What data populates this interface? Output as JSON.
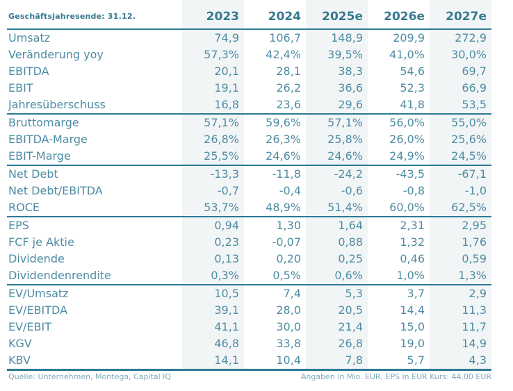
{
  "page": {
    "fiscal_year_end_label": "Geschäftsjahresende: 31.12."
  },
  "table": {
    "columns": [
      "2023",
      "2024",
      "2025e",
      "2026e",
      "2027e"
    ],
    "shaded_columns": [
      0,
      2,
      4
    ],
    "groups": [
      {
        "rows": [
          {
            "label": "Umsatz",
            "values": [
              "74,9",
              "106,7",
              "148,9",
              "209,9",
              "272,9"
            ]
          },
          {
            "label": "Veränderung yoy",
            "values": [
              "57,3%",
              "42,4%",
              "39,5%",
              "41,0%",
              "30,0%"
            ]
          },
          {
            "label": "EBITDA",
            "values": [
              "20,1",
              "28,1",
              "38,3",
              "54,6",
              "69,7"
            ]
          },
          {
            "label": "EBIT",
            "values": [
              "19,1",
              "26,2",
              "36,6",
              "52,3",
              "66,9"
            ]
          },
          {
            "label": "Jahresüberschuss",
            "values": [
              "16,8",
              "23,6",
              "29,6",
              "41,8",
              "53,5"
            ]
          }
        ]
      },
      {
        "rows": [
          {
            "label": "Bruttomarge",
            "values": [
              "57,1%",
              "59,6%",
              "57,1%",
              "56,0%",
              "55,0%"
            ]
          },
          {
            "label": "EBITDA-Marge",
            "values": [
              "26,8%",
              "26,3%",
              "25,8%",
              "26,0%",
              "25,6%"
            ]
          },
          {
            "label": "EBIT-Marge",
            "values": [
              "25,5%",
              "24,6%",
              "24,6%",
              "24,9%",
              "24,5%"
            ]
          }
        ]
      },
      {
        "rows": [
          {
            "label": "Net Debt",
            "values": [
              "-13,3",
              "-11,8",
              "-24,2",
              "-43,5",
              "-67,1"
            ]
          },
          {
            "label": "Net Debt/EBITDA",
            "values": [
              "-0,7",
              "-0,4",
              "-0,6",
              "-0,8",
              "-1,0"
            ]
          },
          {
            "label": "ROCE",
            "values": [
              "53,7%",
              "48,9%",
              "51,4%",
              "60,0%",
              "62,5%"
            ]
          }
        ]
      },
      {
        "rows": [
          {
            "label": "EPS",
            "values": [
              "0,94",
              "1,30",
              "1,64",
              "2,31",
              "2,95"
            ]
          },
          {
            "label": "FCF je Aktie",
            "values": [
              "0,23",
              "-0,07",
              "0,88",
              "1,32",
              "1,76"
            ]
          },
          {
            "label": "Dividende",
            "values": [
              "0,13",
              "0,20",
              "0,25",
              "0,46",
              "0,59"
            ]
          },
          {
            "label": "Dividendenrendite",
            "values": [
              "0,3%",
              "0,5%",
              "0,6%",
              "1,0%",
              "1,3%"
            ]
          }
        ]
      },
      {
        "rows": [
          {
            "label": "EV/Umsatz",
            "values": [
              "10,5",
              "7,4",
              "5,3",
              "3,7",
              "2,9"
            ]
          },
          {
            "label": "EV/EBITDA",
            "values": [
              "39,1",
              "28,0",
              "20,5",
              "14,4",
              "11,3"
            ]
          },
          {
            "label": "EV/EBIT",
            "values": [
              "41,1",
              "30,0",
              "21,4",
              "15,0",
              "11,7"
            ]
          },
          {
            "label": "KGV",
            "values": [
              "46,8",
              "33,8",
              "26,8",
              "19,0",
              "14,9"
            ]
          },
          {
            "label": "KBV",
            "values": [
              "14,1",
              "10,4",
              "7,8",
              "5,7",
              "4,3"
            ]
          }
        ]
      }
    ]
  },
  "footer": {
    "source": "Quelle: Unternehmen, Montega, Capital IQ",
    "note": "Angaben in Mio. EUR, EPS in EUR Kurs: 44,00 EUR"
  },
  "colors": {
    "text": "#4e8ca4",
    "header_text": "#35798f",
    "line": "#2b7a96",
    "stripe_bg": "#f2f5f6",
    "footer_text": "#7da9bb"
  }
}
